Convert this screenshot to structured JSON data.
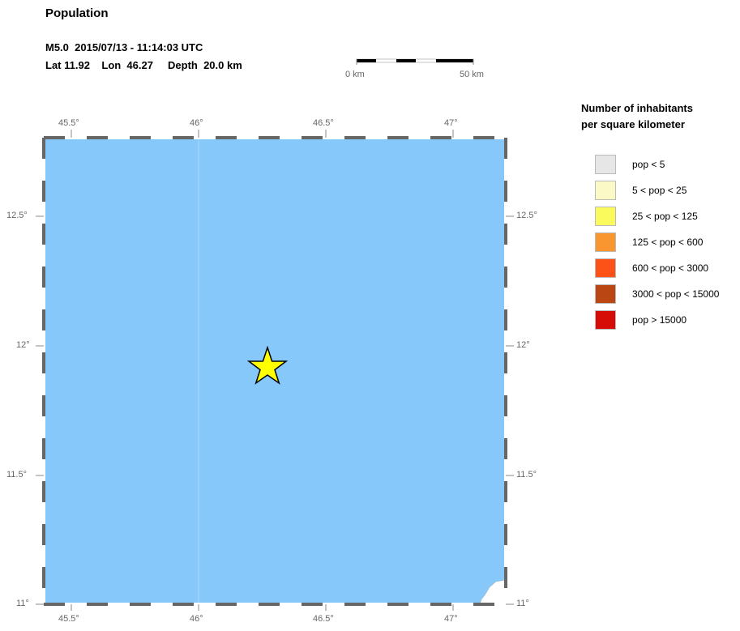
{
  "title": "Population",
  "event": {
    "line1": "M5.0  2015/07/13 - 11:14:03 UTC",
    "line2": "Lat 11.92    Lon  46.27     Depth  20.0 km",
    "magnitude": "M5.0",
    "lat": 11.92,
    "lon": 46.27,
    "depth_km": 20.0
  },
  "scale_bar": {
    "start": "0 km",
    "end": "50 km"
  },
  "map": {
    "lon_range": [
      45.39,
      47.21
    ],
    "lat_range": [
      11.0,
      12.8
    ],
    "water_color": "#87c8fa",
    "star_color": "#ffff00",
    "x_ticks": [
      "45.5°",
      "46°",
      "46.5°",
      "47°"
    ],
    "y_ticks": [
      "12.5°",
      "12°",
      "11.5°",
      "11°"
    ]
  },
  "legend": {
    "title1": "Number of inhabitants",
    "title2": "per square kilometer",
    "items": [
      {
        "label": "pop < 5",
        "color": "#e6e6e6"
      },
      {
        "label": "5 < pop < 25",
        "color": "#fbf9c6"
      },
      {
        "label": "25 < pop < 125",
        "color": "#fafa5c"
      },
      {
        "label": "125 < pop < 600",
        "color": "#f9962f"
      },
      {
        "label": "600 < pop < 3000",
        "color": "#fc5218"
      },
      {
        "label": "3000 < pop < 15000",
        "color": "#b94613"
      },
      {
        "label": "pop > 15000",
        "color": "#d60c07"
      }
    ]
  }
}
